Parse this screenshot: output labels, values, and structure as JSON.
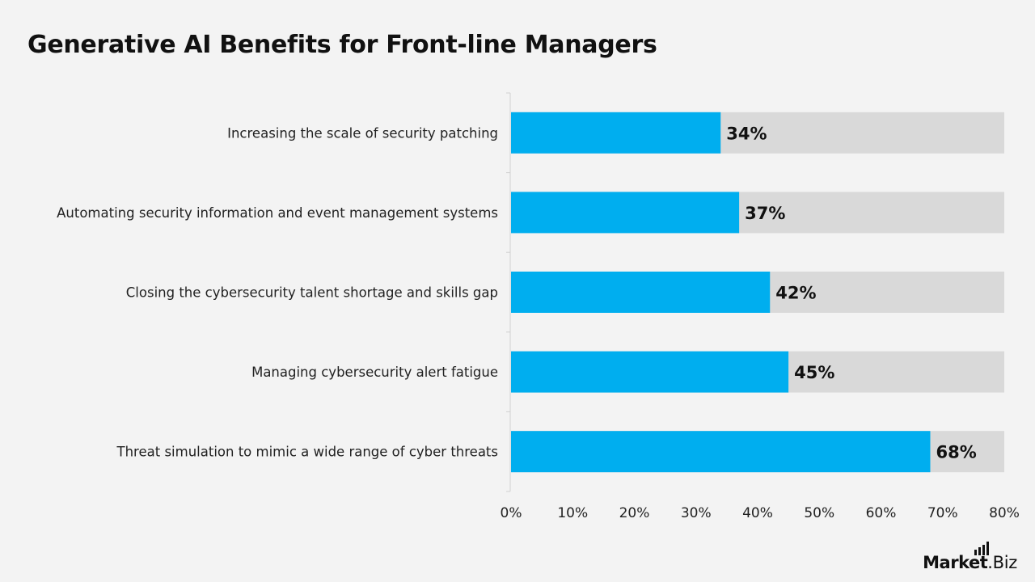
{
  "title": "Generative AI Benefits for Front-line Managers",
  "logo": {
    "main": "Market",
    "suffix": ".Biz"
  },
  "colors": {
    "bar": "#00aeef",
    "track": "#d9d9d9",
    "background": "#f3f3f3",
    "text": "#111111"
  },
  "chart_data": {
    "type": "bar",
    "orientation": "horizontal",
    "categories": [
      "Increasing the scale of security patching",
      "Automating security information and event management systems",
      "Closing the cybersecurity talent shortage and skills gap",
      "Managing cybersecurity alert fatigue",
      "Threat simulation to mimic a wide range of cyber threats"
    ],
    "values": [
      34,
      37,
      42,
      45,
      68
    ],
    "value_labels": [
      "34%",
      "37%",
      "42%",
      "45%",
      "68%"
    ],
    "xlim": [
      0,
      80
    ],
    "x_ticks": [
      0,
      10,
      20,
      30,
      40,
      50,
      60,
      70,
      80
    ],
    "x_tick_labels": [
      "0%",
      "10%",
      "20%",
      "30%",
      "40%",
      "50%",
      "60%",
      "70%",
      "80%"
    ],
    "grid": false,
    "legend": "none"
  }
}
